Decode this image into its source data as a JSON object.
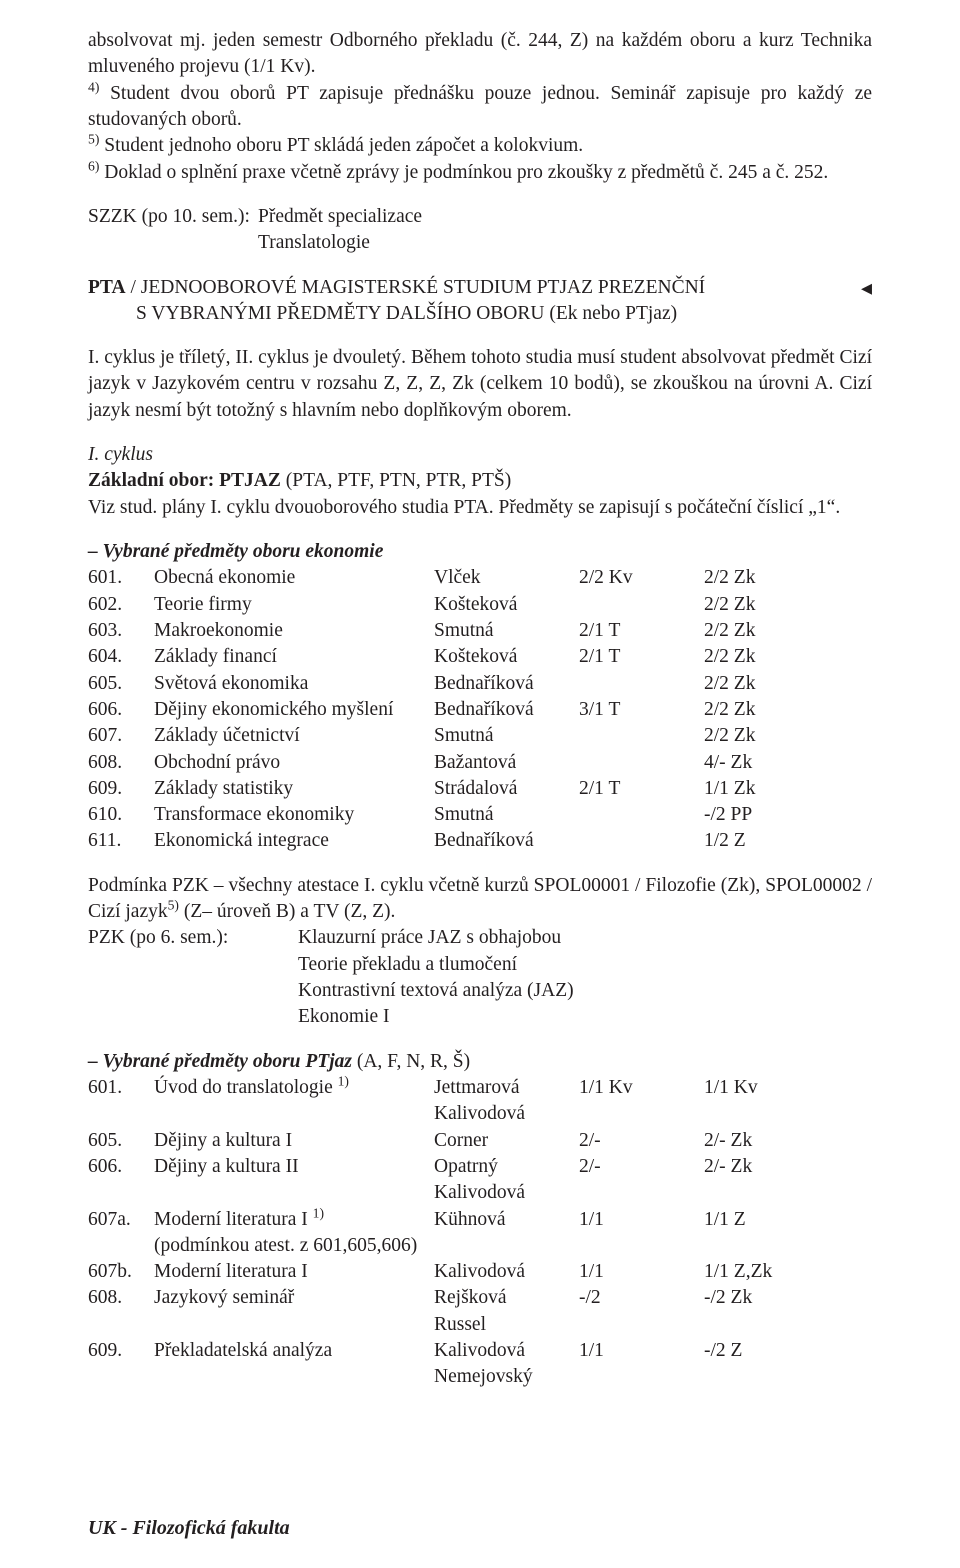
{
  "intro": {
    "p1": "absolvovat mj. jeden semestr Odborného překladu (č. 244, Z) na každém oboru a kurz Technika mluveného projevu (1/1 Kv).",
    "p2_a": "Student dvou oborů PT zapisuje přednášku pouze jednou. Seminář zapisuje pro každý ze studovaných oborů.",
    "p3_a": "Student jednoho oboru PT skládá jeden zápočet a kolokvium.",
    "p4_a": "Doklad o splnění praxe včetně zprávy je podmínkou pro zkoušky z předmětů č. 245 a č. 252.",
    "sup4": "4)",
    "sup5": "5)",
    "sup6": "6)"
  },
  "szzk": {
    "label": "SZZK (po 10. sem.):",
    "v1": "Předmět specializace",
    "v2": "Translatologie"
  },
  "heading1": {
    "bold": "PTA",
    "rest1": " / JEDNOOBOROVÉ MAGISTERSKÉ STUDIUM PTJAZ PREZENČNÍ",
    "rest2": "S VYBRANÝMI PŘEDMĚTY DALŠÍHO OBORU (Ek nebo PTjaz)",
    "triangle": "◂"
  },
  "cycle_para": "I. cyklus je tříletý, II. cyklus je dvouletý. Během tohoto studia musí student absolvovat předmět Cizí jazyk v Jazykovém centru v rozsahu Z, Z, Z, Zk (celkem 10 bodů), se zkouškou na úrovni A. Cizí jazyk nesmí být totožný s hlavním nebo doplňkovým oborem.",
  "icyklus": {
    "l1": "I. cyklus",
    "l2a": "Základní obor: PTJAZ",
    "l2b": " (PTA, PTF, PTN, PTR, PTŠ)",
    "l3": "Viz stud. plány I. cyklu dvouoborového studia PTA. Předměty se zapisují s počáteční číslicí „1“."
  },
  "eco_title": "– Vybrané předměty oboru ekonomie",
  "eco": [
    {
      "n": "601.",
      "name": "Obecná ekonomie",
      "lect": "Vlček",
      "a": "2/2 Kv",
      "b": "2/2 Zk"
    },
    {
      "n": "602.",
      "name": "Teorie firmy",
      "lect": "Košteková",
      "a": "",
      "b": "2/2 Zk"
    },
    {
      "n": "603.",
      "name": "Makroekonomie",
      "lect": "Smutná",
      "a": "2/1 T",
      "b": "2/2 Zk"
    },
    {
      "n": "604.",
      "name": "Základy financí",
      "lect": "Košteková",
      "a": "2/1 T",
      "b": "2/2 Zk"
    },
    {
      "n": "605.",
      "name": "Světová ekonomika",
      "lect": "Bednaříková",
      "a": "",
      "b": "2/2 Zk"
    },
    {
      "n": "606.",
      "name": "Dějiny ekonomického myšlení",
      "lect": "Bednaříková",
      "a": "3/1 T",
      "b": "2/2 Zk"
    },
    {
      "n": "607.",
      "name": "Základy účetnictví",
      "lect": "Smutná",
      "a": "",
      "b": "2/2 Zk"
    },
    {
      "n": "608.",
      "name": "Obchodní právo",
      "lect": "Bažantová",
      "a": "",
      "b": "4/- Zk"
    },
    {
      "n": "609.",
      "name": "Základy statistiky",
      "lect": "Strádalová",
      "a": "2/1 T",
      "b": "1/1 Zk"
    },
    {
      "n": "610.",
      "name": "Transformace ekonomiky",
      "lect": "Smutná",
      "a": "",
      "b": "-/2 PP"
    },
    {
      "n": "611.",
      "name": "Ekonomická integrace",
      "lect": "Bednaříková",
      "a": "",
      "b": "1/2 Z"
    }
  ],
  "pzk": {
    "para_a": "Podmínka PZK – všechny atestace I. cyklu včetně kurzů SPOL00001 / Filozofie (Zk), SPOL00002 / Cizí jazyk",
    "para_sup": "5)",
    "para_b": " (Z– úroveň B) a TV (Z, Z).",
    "label": "PZK (po 6. sem.):",
    "v1": "Klauzurní práce JAZ s obhajobou",
    "v2": "Teorie překladu a tlumočení",
    "v3": "Kontrastivní textová analýza (JAZ)",
    "v4": "Ekonomie I"
  },
  "ptjaz_title_a": "– Vybrané předměty oboru PTjaz",
  "ptjaz_title_b": " (A, F, N, R, Š)",
  "ptjaz": [
    {
      "n": "601.",
      "name": "Úvod do translatologie ",
      "sup": "1)",
      "lect": "Jettmarová",
      "a": "1/1 Kv",
      "b": "1/1 Kv"
    },
    {
      "n": "",
      "name": "",
      "sup": "",
      "lect": "Kalivodová",
      "a": "",
      "b": ""
    },
    {
      "n": "605.",
      "name": "Dějiny a kultura I",
      "sup": "",
      "lect": "Corner",
      "a": "2/-",
      "b": "2/- Zk"
    },
    {
      "n": "606.",
      "name": "Dějiny a kultura II",
      "sup": "",
      "lect": "Opatrný",
      "a": "2/-",
      "b": "2/- Zk"
    },
    {
      "n": "",
      "name": "",
      "sup": "",
      "lect": "Kalivodová",
      "a": "",
      "b": ""
    },
    {
      "n": "607a.",
      "name": "Moderní literatura I ",
      "sup": "1)",
      "lect": "Kühnová",
      "a": "1/1",
      "b": "1/1 Z"
    },
    {
      "n": "",
      "name": "(podmínkou atest. z 601,605,606)",
      "sup": "",
      "lect": "",
      "a": "",
      "b": ""
    },
    {
      "n": "607b.",
      "name": "Moderní literatura I",
      "sup": "",
      "lect": "Kalivodová",
      "a": "1/1",
      "b": "1/1 Z,Zk"
    },
    {
      "n": "608.",
      "name": "Jazykový seminář",
      "sup": "",
      "lect": "Rejšková",
      "a": "-/2",
      "b": "-/2 Zk"
    },
    {
      "n": "",
      "name": "",
      "sup": "",
      "lect": "Russel",
      "a": "",
      "b": ""
    },
    {
      "n": "609.",
      "name": "Překladatelská analýza",
      "sup": "",
      "lect": "Kalivodová",
      "a": "1/1",
      "b": "-/2 Z"
    },
    {
      "n": "",
      "name": "",
      "sup": "",
      "lect": "Nemejovský",
      "a": "",
      "b": ""
    }
  ],
  "footer": "UK - Filozofická fakulta"
}
